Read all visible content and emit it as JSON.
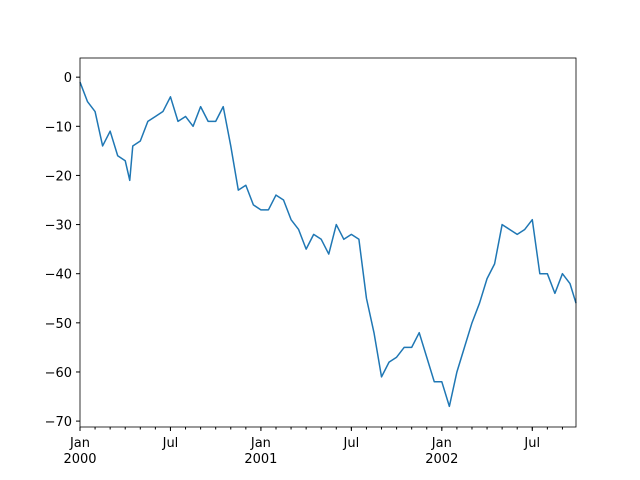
{
  "chart_data": {
    "type": "line",
    "x": [
      0,
      0.5,
      1,
      1.5,
      2,
      2.5,
      3,
      3.3,
      3.5,
      4,
      4.5,
      5,
      5.5,
      6,
      6.5,
      7,
      7.5,
      8,
      8.5,
      9,
      9.5,
      10,
      10.5,
      11,
      11.5,
      12,
      12.5,
      13,
      13.5,
      14,
      14.5,
      15,
      15.5,
      16,
      16.5,
      17,
      17.5,
      18,
      18.5,
      19,
      19.5,
      20,
      20.5,
      21,
      21.5,
      22,
      22.5,
      23,
      23.5,
      24,
      24.5,
      25,
      25.5,
      26,
      26.5,
      27,
      27.5,
      28,
      28.5,
      29,
      29.5,
      30,
      30.5,
      31,
      31.5,
      32,
      32.5,
      32.9
    ],
    "series": [
      {
        "color": "#1f77b4",
        "values": [
          -1,
          -5,
          -7,
          -14,
          -11,
          -16,
          -17,
          -21,
          -14,
          -13,
          -9,
          -8,
          -7,
          -4,
          -9,
          -8,
          -10,
          -6,
          -9,
          -9,
          -6,
          -14,
          -23,
          -22,
          -26,
          -27,
          -27,
          -24,
          -25,
          -29,
          -31,
          -35,
          -32,
          -33,
          -36,
          -30,
          -33,
          -32,
          -33,
          -45,
          -52,
          -61,
          -58,
          -57,
          -55,
          -55,
          -52,
          -57,
          -62,
          -62,
          -67,
          -60,
          -55,
          -50,
          -46,
          -41,
          -38,
          -30,
          -31,
          -32,
          -31,
          -29,
          -40,
          -40,
          -44,
          -40,
          -42,
          -46
        ]
      }
    ],
    "xlim": [
      0,
      32.9
    ],
    "xticks": [
      {
        "value": 0,
        "label": "Jan\n2000"
      },
      {
        "value": 6,
        "label": "Jul"
      },
      {
        "value": 12,
        "label": "Jan\n2001"
      },
      {
        "value": 18,
        "label": "Jul"
      },
      {
        "value": 24,
        "label": "Jan\n2002"
      },
      {
        "value": 30,
        "label": "Jul"
      }
    ],
    "ylim": [
      -71.2,
      3.9
    ],
    "yticks": [
      0,
      {
        "value": -10,
        "label": "−10"
      },
      {
        "value": -20,
        "label": "−20"
      },
      {
        "value": -30,
        "label": "−30"
      },
      {
        "value": -40,
        "label": "−40"
      },
      {
        "value": -50,
        "label": "−50"
      },
      {
        "value": -60,
        "label": "−60"
      },
      {
        "value": -70,
        "label": "−70"
      }
    ]
  }
}
